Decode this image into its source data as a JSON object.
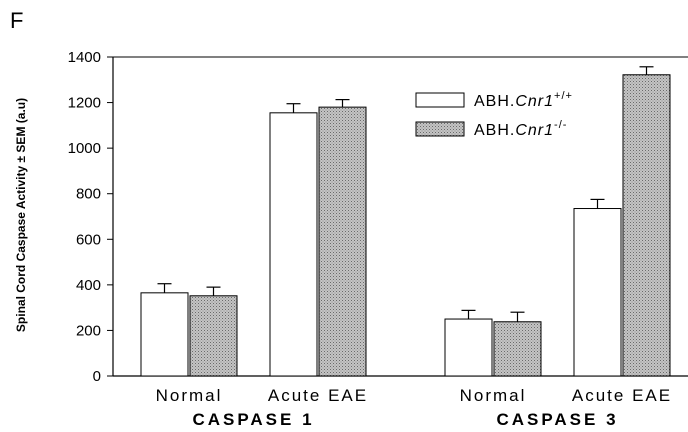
{
  "panel_letter": "F",
  "chart_data": {
    "type": "bar",
    "title": "",
    "ylabel": "Spinal Cord Caspase Activity ± SEM (a.u)",
    "xlabel": "",
    "ylim": [
      0,
      1400
    ],
    "yticks": [
      0,
      200,
      400,
      600,
      800,
      1000,
      1200,
      1400
    ],
    "error_bars": "SEM, upper only",
    "legend_position": "top-right",
    "groups": [
      {
        "label": "CASPASE 1",
        "categories": [
          "Normal",
          "Acute EAE"
        ]
      },
      {
        "label": "CASPASE 3",
        "categories": [
          "Normal",
          "Acute EAE"
        ]
      }
    ],
    "categories": [
      "Normal",
      "Acute EAE",
      "Normal",
      "Acute EAE"
    ],
    "series": [
      {
        "name_base": "ABH.",
        "name_italic": "Cnr1",
        "name_sup": "+/+",
        "fill": "#ffffff",
        "pattern": "none",
        "values": [
          365,
          1155,
          250,
          735
        ],
        "errors": [
          40,
          40,
          38,
          40
        ]
      },
      {
        "name_base": "ABH.",
        "name_italic": "Cnr1",
        "name_sup": "-/-",
        "fill": "#b8b8b8",
        "pattern": "stipple",
        "values": [
          352,
          1180,
          238,
          1322
        ],
        "errors": [
          38,
          33,
          42,
          35
        ]
      }
    ]
  }
}
